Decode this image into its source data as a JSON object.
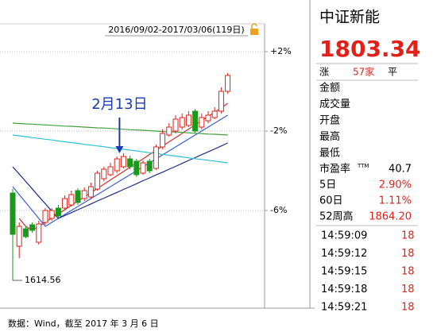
{
  "chart_data": {
    "type": "candlestick",
    "header": "2016/09/02-2017/03/06(119日)",
    "annotation": "2月13日",
    "low_label": "1614.56",
    "categories": [
      null,
      null,
      null,
      null,
      null,
      null,
      null,
      null,
      null,
      null,
      null,
      null,
      null,
      null,
      null,
      null,
      null,
      null,
      null,
      null,
      null,
      null,
      null,
      null,
      null,
      null,
      null,
      null,
      null,
      null,
      null,
      null,
      null,
      null
    ],
    "open": [
      -5.12,
      -7.8,
      -6.92,
      -6.72,
      -7.6,
      -6.6,
      -6.4,
      -5.88,
      -5.88,
      -5.72,
      -5.0,
      -5.4,
      -5.32,
      -4.92,
      -4.4,
      -4.2,
      -4.0,
      -3.8,
      -3.4,
      -3.52,
      -4.12,
      -3.52,
      -3.88,
      -2.8,
      -2.2,
      -2.0,
      -1.8,
      -1.72,
      -1.0,
      -1.8,
      -1.48,
      -1.32,
      -1.0,
      0.0
    ],
    "high": [
      -4.92,
      -6.6,
      -6.8,
      -6.6,
      -6.52,
      -5.88,
      -5.88,
      -5.72,
      -5.24,
      -5.0,
      -4.88,
      -4.84,
      -4.6,
      -4.0,
      -3.8,
      -3.6,
      -3.28,
      -3.12,
      -3.24,
      -3.4,
      -3.48,
      -3.4,
      -2.68,
      -1.92,
      -1.6,
      -1.2,
      -1.12,
      -1.0,
      -0.88,
      -1.12,
      -1.0,
      -0.8,
      0.2,
      0.92
    ],
    "low": [
      -9.52,
      -8.4,
      -7.4,
      -7.12,
      -7.72,
      -6.72,
      -6.52,
      -6.4,
      -6.0,
      -5.8,
      -5.72,
      -5.52,
      -5.4,
      -5.0,
      -4.52,
      -4.28,
      -4.12,
      -3.88,
      -3.92,
      -4.32,
      -4.2,
      -4.12,
      -3.96,
      -2.92,
      -2.28,
      -2.12,
      -1.92,
      -1.8,
      -2.12,
      -1.92,
      -1.6,
      -1.4,
      -1.12,
      -0.12
    ],
    "close": [
      -7.2,
      -6.8,
      -7.32,
      -7.0,
      -6.68,
      -6.0,
      -6.0,
      -6.28,
      -5.4,
      -5.2,
      -5.6,
      -5.0,
      -4.8,
      -4.12,
      -3.92,
      -3.8,
      -3.4,
      -3.28,
      -3.8,
      -4.2,
      -3.6,
      -4.0,
      -2.8,
      -2.12,
      -1.8,
      -1.4,
      -1.32,
      -1.2,
      -2.0,
      -1.32,
      -1.2,
      -1.0,
      0.0,
      0.8
    ],
    "up_color": "#e0211a",
    "down_color": "#1a9a1a",
    "series": [
      {
        "color": "#d42a2a",
        "values": [
          null,
          -6.4,
          -6.8,
          -7.0,
          -6.8,
          -6.6,
          -6.38,
          -6.17,
          -5.96,
          -5.74,
          -5.53,
          -5.32,
          -5.1,
          -4.89,
          -4.68,
          -4.46,
          -4.25,
          -4.04,
          -3.82,
          -3.61,
          -3.4,
          -3.18,
          -2.97,
          -2.76,
          -2.54,
          -2.33,
          -2.12,
          -1.9,
          -1.69,
          -1.48,
          -1.26,
          -1.05,
          -0.84,
          -0.6
        ]
      },
      {
        "color": "#3a5ad8",
        "values": [
          -4.8,
          -5.2,
          -5.6,
          -6.0,
          -6.4,
          -6.8,
          -6.6,
          -6.4,
          -6.2,
          -6.0,
          -5.8,
          -5.6,
          -5.4,
          -5.2,
          -5.0,
          -4.8,
          -4.6,
          -4.4,
          -4.2,
          -4.0,
          -3.8,
          -3.6,
          -3.4,
          -3.2,
          -3.0,
          -2.8,
          -2.6,
          -2.4,
          -2.2,
          -2.0,
          -1.8,
          -1.6,
          -1.4,
          -1.2
        ]
      },
      {
        "color": "#1a2a8a",
        "values": [
          -3.8,
          -4.17,
          -4.54,
          -4.91,
          -5.29,
          -5.66,
          -6.03,
          -6.4,
          -6.25,
          -6.11,
          -5.96,
          -5.82,
          -5.67,
          -5.52,
          -5.38,
          -5.23,
          -5.09,
          -4.94,
          -4.8,
          -4.65,
          -4.5,
          -4.36,
          -4.21,
          -4.07,
          -3.92,
          -3.78,
          -3.63,
          -3.48,
          -3.34,
          -3.19,
          -3.05,
          -2.9,
          -2.75,
          -2.6
        ]
      },
      {
        "color": "#30c0d0",
        "values": [
          -2.2,
          -2.24,
          -2.28,
          -2.33,
          -2.37,
          -2.41,
          -2.45,
          -2.5,
          -2.54,
          -2.58,
          -2.62,
          -2.67,
          -2.71,
          -2.75,
          -2.79,
          -2.84,
          -2.88,
          -2.92,
          -2.96,
          -3.0,
          -3.05,
          -3.09,
          -3.13,
          -3.17,
          -3.22,
          -3.26,
          -3.3,
          -3.35,
          -3.39,
          -3.43,
          -3.47,
          -3.51,
          -3.56,
          -3.6
        ]
      },
      {
        "color": "#40a040",
        "values": [
          -1.6,
          -1.62,
          -1.64,
          -1.65,
          -1.67,
          -1.69,
          -1.71,
          -1.73,
          -1.75,
          -1.76,
          -1.78,
          -1.8,
          -1.82,
          -1.84,
          -1.85,
          -1.87,
          -1.89,
          -1.91,
          -1.93,
          -1.95,
          -1.96,
          -1.98,
          -2.0,
          -2.02,
          -2.04,
          -2.05,
          -2.07,
          -2.09,
          -2.11,
          -2.13,
          -2.15,
          -2.16,
          -2.18,
          -2.2
        ]
      }
    ],
    "ylim": [
      -10.8,
      3.4
    ],
    "yticks": [
      {
        "value": 2,
        "label": "+2%"
      },
      {
        "value": -2,
        "label": "-2%"
      },
      {
        "value": -6,
        "label": "-6%"
      }
    ],
    "grid": true
  },
  "panel": {
    "name": "中证新能",
    "price": "1803.34",
    "breadth": [
      "涨",
      "57家",
      "平"
    ],
    "fields": [
      "金额",
      "成交量",
      "开盘",
      "最高",
      "最低"
    ],
    "stats": [
      {
        "label": "市盈率",
        "sup": "TTM",
        "value": "40.7"
      },
      {
        "label": "5日",
        "value": "2.90%"
      },
      {
        "label": "60日",
        "value": "1.11%"
      },
      {
        "label": "52周高",
        "value": "1864.20"
      }
    ],
    "ticks": [
      [
        "14:59:09",
        "18"
      ],
      [
        "14:59:12",
        "18"
      ],
      [
        "14:59:15",
        "18"
      ],
      [
        "14:59:18",
        "18"
      ],
      [
        "14:59:21",
        "18"
      ]
    ]
  },
  "footer": "数据：Wind，截至 2017 年 3 月 6 日"
}
